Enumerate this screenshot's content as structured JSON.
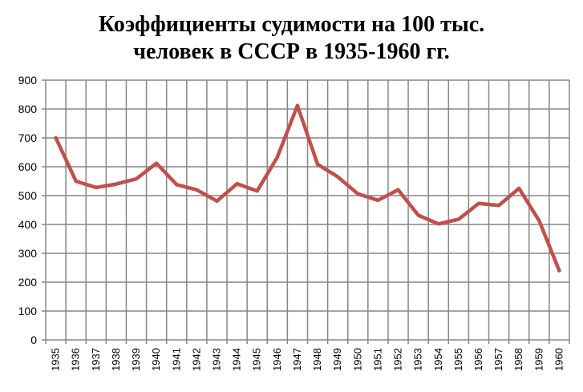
{
  "chart_data": {
    "type": "line",
    "title_lines": [
      "Коэффициенты судимости на 100 тыс.",
      "человек в СССР в 1935-1960 гг."
    ],
    "x": [
      "1935",
      "1936",
      "1937",
      "1938",
      "1939",
      "1940",
      "1941",
      "1942",
      "1943",
      "1944",
      "1945",
      "1946",
      "1947",
      "1948",
      "1949",
      "1950",
      "1951",
      "1952",
      "1953",
      "1954",
      "1955",
      "1956",
      "1957",
      "1958",
      "1959",
      "1960"
    ],
    "series": [
      {
        "values": [
          700,
          550,
          528,
          540,
          558,
          612,
          538,
          520,
          481,
          541,
          516,
          633,
          812,
          608,
          565,
          506,
          484,
          520,
          432,
          402,
          418,
          473,
          466,
          525,
          413,
          240
        ]
      }
    ],
    "yticks": [
      0,
      100,
      200,
      300,
      400,
      500,
      600,
      700,
      800,
      900
    ],
    "ylim": [
      0,
      900
    ],
    "grid": true,
    "line_color": "#c0504d",
    "grid_color": "#868686"
  }
}
